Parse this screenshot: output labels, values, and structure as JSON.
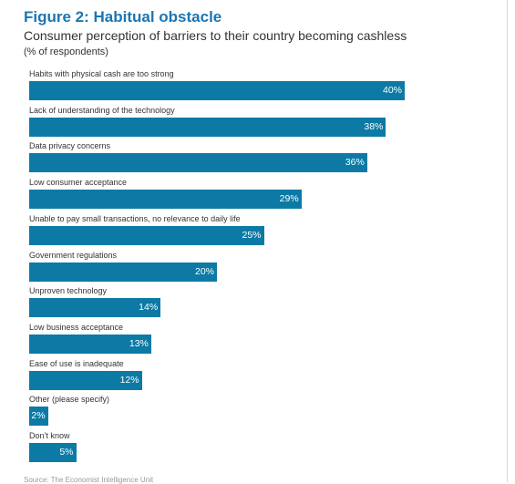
{
  "chart_data": {
    "type": "bar",
    "orientation": "horizontal",
    "title": "Figure 2: Habitual obstacle",
    "subtitle": "Consumer perception of barriers to their country becoming cashless",
    "unit_label": "(% of respondents)",
    "categories": [
      "Habits with physical cash are too strong",
      "Lack of understanding of the technology",
      "Data privacy concerns",
      "Low consumer acceptance",
      "Unable to pay small transactions, no relevance to daily life",
      "Government regulations",
      "Unproven technology",
      "Low business acceptance",
      "Ease of use is inadequate",
      "Other (please specify)",
      "Don’t know"
    ],
    "values": [
      40,
      38,
      36,
      29,
      25,
      20,
      14,
      13,
      12,
      2,
      5
    ],
    "value_labels": [
      "40%",
      "38%",
      "36%",
      "29%",
      "25%",
      "20%",
      "14%",
      "13%",
      "12%",
      "2%",
      "5%"
    ],
    "bar_color": "#0c7aa5",
    "title_color": "#1b75b4",
    "xlim": [
      0,
      40
    ],
    "grid": false,
    "legend": "none",
    "source": "Source: The Economist Intelligence Unit"
  }
}
